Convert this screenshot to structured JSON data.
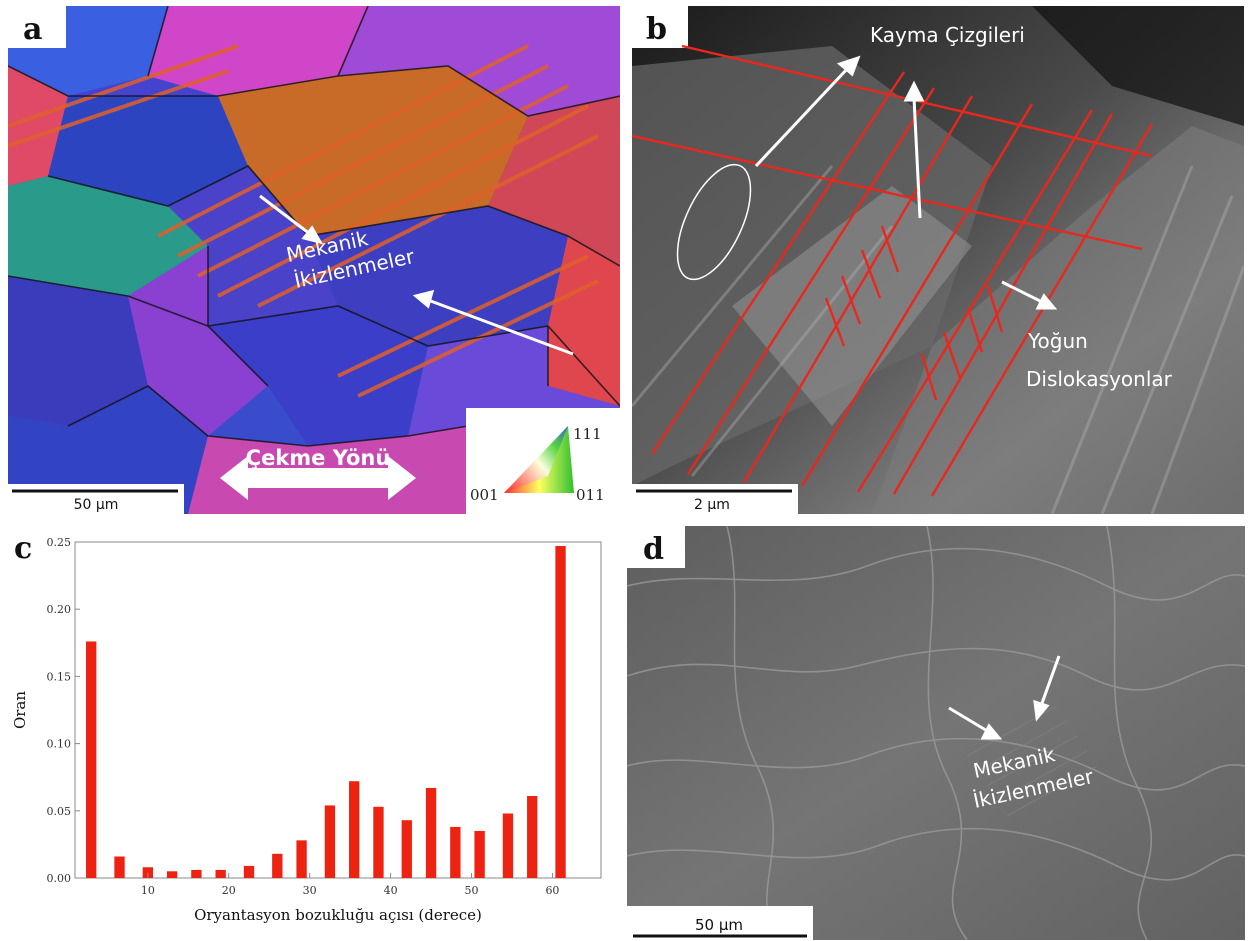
{
  "panels": {
    "a": {
      "label": "a",
      "annotation_line1": "Mekanik",
      "annotation_line2": "İkizlenmeler",
      "direction_label": "Çekme Yönü",
      "scale_bar": "50 µm",
      "ipf_legend": {
        "top": "111",
        "left": "001",
        "right": "011"
      }
    },
    "b": {
      "label": "b",
      "slip_lines": "Kayma Çizgileri",
      "dense_dislocations_line1": "Yoğun",
      "dense_dislocations_line2": "Dislokasyonlar",
      "scale_bar": "2 µm",
      "line_color": "#e8281e"
    },
    "d": {
      "label": "d",
      "annotation_line1": "Mekanik",
      "annotation_line2": "İkizlenmeler",
      "scale_bar": "50 µm"
    }
  },
  "chart_data": {
    "type": "bar",
    "panel_label": "c",
    "title": "",
    "xlabel": "Oryantasyon bozukluğu açısı (derece)",
    "ylabel": "Oran",
    "x": [
      3,
      6.5,
      10,
      13,
      16,
      19,
      22.5,
      26,
      29,
      32.5,
      35.5,
      38.5,
      42,
      45,
      48,
      51,
      54.5,
      57.5,
      61
    ],
    "values": [
      0.176,
      0.016,
      0.008,
      0.005,
      0.006,
      0.006,
      0.009,
      0.018,
      0.028,
      0.054,
      0.072,
      0.053,
      0.043,
      0.067,
      0.038,
      0.035,
      0.048,
      0.061,
      0.247
    ],
    "xlim": [
      1,
      66
    ],
    "ylim": [
      0,
      0.25
    ],
    "xticks": [
      "10",
      "20",
      "30",
      "40",
      "50",
      "60"
    ],
    "yticks": [
      "0.00",
      "0.05",
      "0.10",
      "0.15",
      "0.20",
      "0.25"
    ],
    "bar_color": "#ee2211",
    "grid": false
  }
}
